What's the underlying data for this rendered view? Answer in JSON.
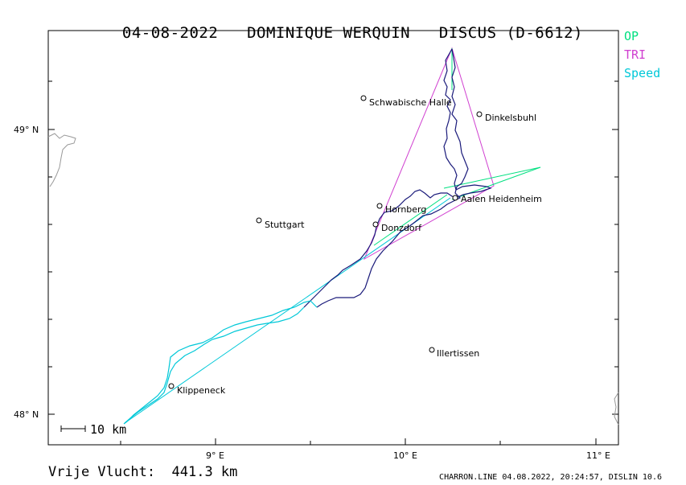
{
  "title": {
    "date": "04-08-2022",
    "pilot": "DOMINIQUE WERQUIN",
    "glider": "DISCUS (D-6612)"
  },
  "legend": [
    {
      "label": "OP",
      "color": "#00e080"
    },
    {
      "label": "TRI",
      "color": "#d040d0"
    },
    {
      "label": "Speed",
      "color": "#00c8d8"
    }
  ],
  "axes": {
    "x_ticks": [
      "9° E",
      "10° E",
      "11° E"
    ],
    "y_ticks": [
      "49° N",
      "48° N"
    ]
  },
  "scale_bar": "10 km",
  "places": [
    {
      "name": "Schwabische Halle"
    },
    {
      "name": "Dinkelsbuhl"
    },
    {
      "name": "Hornberg"
    },
    {
      "name": "Aalen Heidenheim"
    },
    {
      "name": "Donzdorf"
    },
    {
      "name": "Stuttgart"
    },
    {
      "name": "Illertissen"
    },
    {
      "name": "Klippeneck"
    }
  ],
  "distance": "Vrije Vlucht:  441.3 km",
  "footer": "CHARRON.LINE 04.08.2022, 20:24:57, DISLIN 10.6",
  "colors": {
    "track_dark": "#1a1a7a",
    "track_speed": "#00c8d8",
    "op": "#00e080",
    "tri": "#d040d0",
    "coast": "#999999"
  }
}
